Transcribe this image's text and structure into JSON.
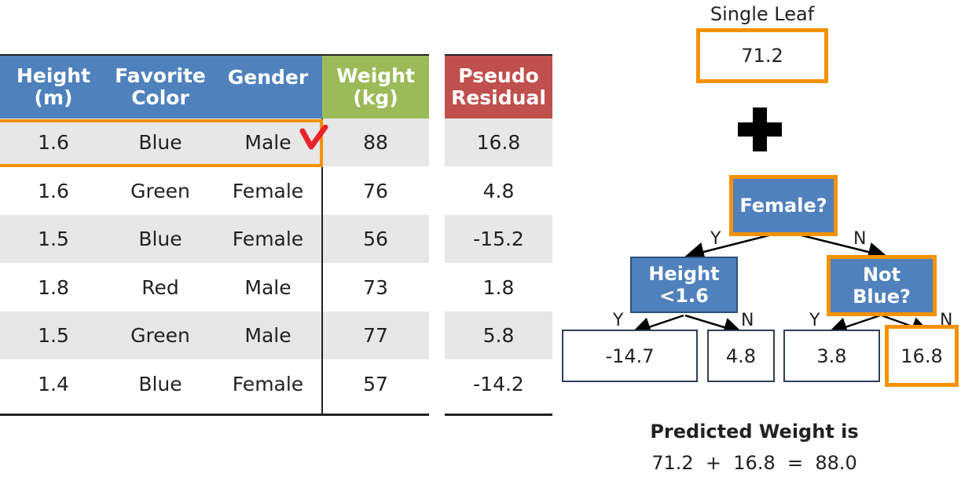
{
  "table": {
    "headers": [
      {
        "label": "Height\n(m)"
      },
      {
        "label": "Favorite\nColor"
      },
      {
        "label": "Gender"
      },
      {
        "label": "Weight\n(kg)"
      },
      {
        "label": "Pseudo\nResidual"
      }
    ],
    "rows": [
      {
        "height": "1.6",
        "color": "Blue",
        "gender": "Male",
        "weight": "88",
        "residual": "16.8"
      },
      {
        "height": "1.6",
        "color": "Green",
        "gender": "Female",
        "weight": "76",
        "residual": "4.8"
      },
      {
        "height": "1.5",
        "color": "Blue",
        "gender": "Female",
        "weight": "56",
        "residual": "-15.2"
      },
      {
        "height": "1.8",
        "color": "Red",
        "gender": "Male",
        "weight": "73",
        "residual": "1.8"
      },
      {
        "height": "1.5",
        "color": "Green",
        "gender": "Male",
        "weight": "77",
        "residual": "5.8"
      },
      {
        "height": "1.4",
        "color": "Blue",
        "gender": "Female",
        "weight": "57",
        "residual": "-14.2"
      }
    ]
  },
  "single_leaf": {
    "title": "Single Leaf",
    "value": "71.2"
  },
  "tree": {
    "root": "Female?",
    "left_node": "Height\n<1.6",
    "right_node": "Not\nBlue?",
    "leaves": [
      "-14.7",
      "4.8",
      "3.8",
      "16.8"
    ],
    "yes": "Y",
    "no": "N"
  },
  "result": {
    "title": "Predicted Weight is",
    "equation": "71.2  +  16.8  =  88.0"
  },
  "colors": {
    "blue": "#4f81bd",
    "green": "#9bbb59",
    "red": "#c0504d",
    "orange": "#f39200",
    "check": "#e8232a"
  }
}
